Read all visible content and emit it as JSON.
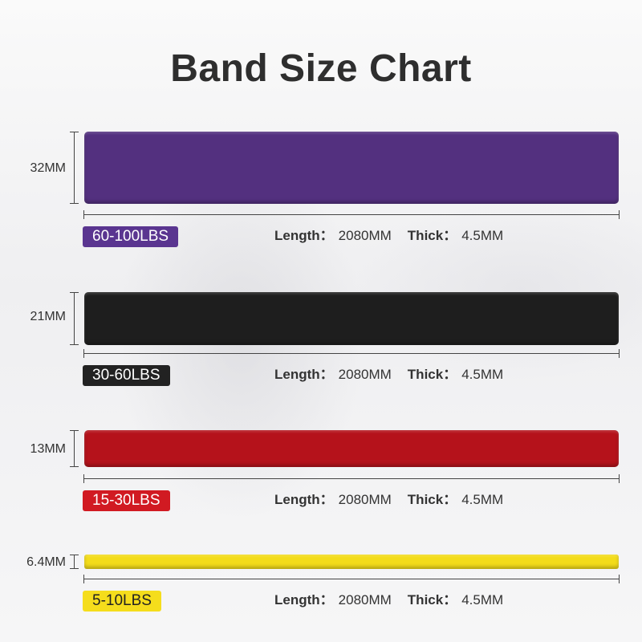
{
  "title": "Band Size Chart",
  "bands": [
    {
      "width": "32MM",
      "resistance": "60-100LBS",
      "color": "#53307f",
      "badge_color": "#5a3590",
      "badge_text_color": "#ffffff",
      "length_label": "Length：",
      "length_value": "2080MM",
      "thick_label": "Thick：",
      "thick_value": "4.5MM"
    },
    {
      "width": "21MM",
      "resistance": "30-60LBS",
      "color": "#1e1e1e",
      "badge_color": "#222222",
      "badge_text_color": "#ffffff",
      "length_label": "Length：",
      "length_value": "2080MM",
      "thick_label": "Thick：",
      "thick_value": "4.5MM"
    },
    {
      "width": "13MM",
      "resistance": "15-30LBS",
      "color": "#b5121b",
      "badge_color": "#d11a22",
      "badge_text_color": "#ffffff",
      "length_label": "Length：",
      "length_value": "2080MM",
      "thick_label": "Thick：",
      "thick_value": "4.5MM"
    },
    {
      "width": "6.4MM",
      "resistance": "5-10LBS",
      "color": "#f3dc1a",
      "badge_color": "#f5dd1c",
      "badge_text_color": "#222222",
      "length_label": "Length：",
      "length_value": "2080MM",
      "thick_label": "Thick：",
      "thick_value": "4.5MM"
    }
  ]
}
